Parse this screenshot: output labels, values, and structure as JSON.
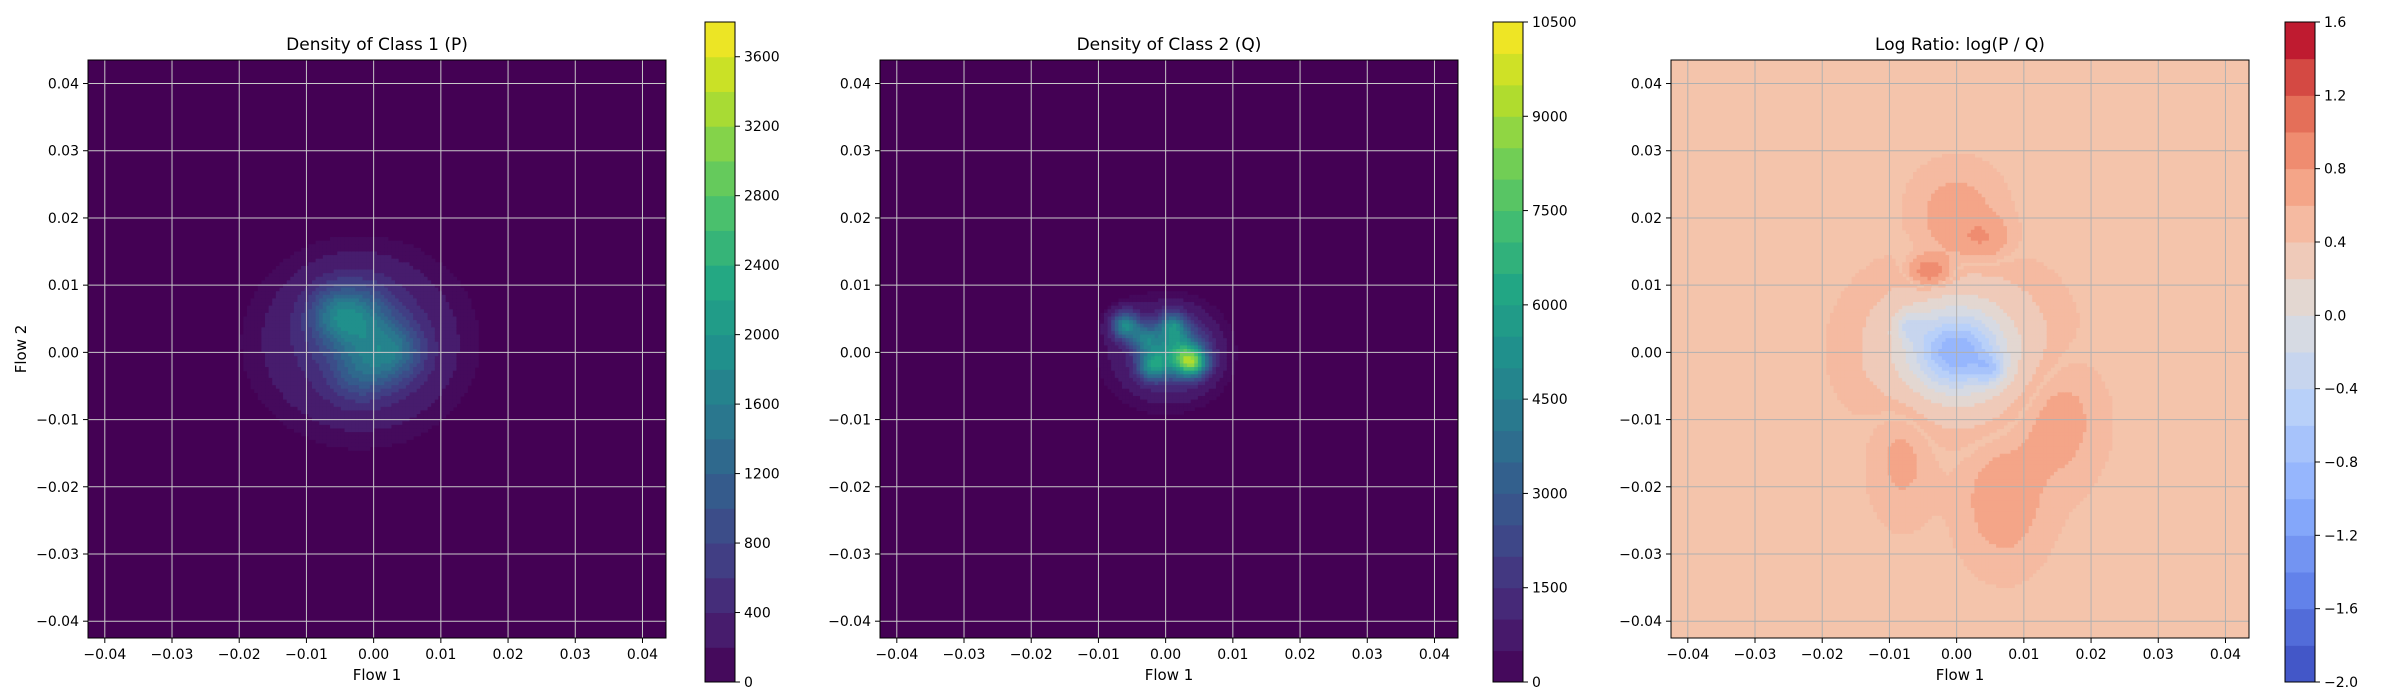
{
  "chart_data": [
    {
      "type": "heatmap",
      "title": "Density of Class 1 (P)",
      "xlabel": "Flow 1",
      "ylabel": "Flow 2",
      "xlim": [
        -0.0425,
        0.0435
      ],
      "ylim": [
        -0.0425,
        0.0435
      ],
      "grid": true,
      "x_ticks": [
        -0.04,
        -0.03,
        -0.02,
        -0.01,
        0.0,
        0.01,
        0.02,
        0.03,
        0.04
      ],
      "y_ticks": [
        -0.04,
        -0.03,
        -0.02,
        -0.01,
        0.0,
        0.01,
        0.02,
        0.03,
        0.04
      ],
      "x_tick_labels": [
        "−0.04",
        "−0.03",
        "−0.02",
        "−0.01",
        "0.00",
        "0.01",
        "0.02",
        "0.03",
        "0.04"
      ],
      "y_tick_labels": [
        "−0.04",
        "−0.03",
        "−0.02",
        "−0.01",
        "0.00",
        "0.01",
        "0.02",
        "0.03",
        "0.04"
      ],
      "colormap": "viridis",
      "background_color": "#440154",
      "colorbar": {
        "min": 0,
        "max": 3800,
        "levels": 19,
        "ticks": [
          0,
          400,
          800,
          1200,
          1600,
          2000,
          2400,
          2800,
          3200,
          3600
        ],
        "tick_labels": [
          "0",
          "400",
          "800",
          "1200",
          "1600",
          "2000",
          "2400",
          "2800",
          "3200",
          "3600"
        ]
      },
      "blobs": [
        {
          "x": -0.002,
          "y": 0.0015,
          "sx": 0.0095,
          "sy": 0.0085,
          "amp": 0.17
        },
        {
          "x": -0.003,
          "y": 0.005,
          "sx": 0.0038,
          "sy": 0.0035,
          "amp": 0.3
        },
        {
          "x": 0.003,
          "y": 0.0,
          "sx": 0.003,
          "sy": 0.003,
          "amp": 0.24
        },
        {
          "x": -0.002,
          "y": -0.003,
          "sx": 0.003,
          "sy": 0.003,
          "amp": 0.16
        },
        {
          "x": -0.006,
          "y": 0.006,
          "sx": 0.0025,
          "sy": 0.0025,
          "amp": 0.1
        }
      ]
    },
    {
      "type": "heatmap",
      "title": "Density of Class 2 (Q)",
      "xlabel": "Flow 1",
      "ylabel": "",
      "xlim": [
        -0.0425,
        0.0435
      ],
      "ylim": [
        -0.0425,
        0.0435
      ],
      "grid": true,
      "x_ticks": [
        -0.04,
        -0.03,
        -0.02,
        -0.01,
        0.0,
        0.01,
        0.02,
        0.03,
        0.04
      ],
      "y_ticks": [
        -0.04,
        -0.03,
        -0.02,
        -0.01,
        0.0,
        0.01,
        0.02,
        0.03,
        0.04
      ],
      "x_tick_labels": [
        "−0.04",
        "−0.03",
        "−0.02",
        "−0.01",
        "0.00",
        "0.01",
        "0.02",
        "0.03",
        "0.04"
      ],
      "y_tick_labels": [
        "−0.04",
        "−0.03",
        "−0.02",
        "−0.01",
        "0.00",
        "0.01",
        "0.02",
        "0.03",
        "0.04"
      ],
      "colormap": "viridis",
      "background_color": "#440154",
      "colorbar": {
        "min": 0,
        "max": 10500,
        "levels": 21,
        "ticks": [
          0,
          1500,
          3000,
          4500,
          6000,
          7500,
          9000,
          10500
        ],
        "tick_labels": [
          "0",
          "1500",
          "3000",
          "4500",
          "6000",
          "7500",
          "9000",
          "10500"
        ]
      },
      "blobs": [
        {
          "x": 0.0,
          "y": 0.0,
          "sx": 0.0062,
          "sy": 0.0055,
          "amp": 0.12
        },
        {
          "x": 0.002,
          "y": 0.0,
          "sx": 0.0025,
          "sy": 0.0025,
          "amp": 0.45
        },
        {
          "x": 0.004,
          "y": -0.0015,
          "sx": 0.0016,
          "sy": 0.0014,
          "amp": 0.5
        },
        {
          "x": -0.006,
          "y": 0.004,
          "sx": 0.0014,
          "sy": 0.0014,
          "amp": 0.42
        },
        {
          "x": -0.002,
          "y": -0.002,
          "sx": 0.0015,
          "sy": 0.0015,
          "amp": 0.38
        },
        {
          "x": 0.001,
          "y": 0.004,
          "sx": 0.0014,
          "sy": 0.0014,
          "amp": 0.32
        },
        {
          "x": -0.003,
          "y": 0.002,
          "sx": 0.0015,
          "sy": 0.0015,
          "amp": 0.3
        }
      ]
    },
    {
      "type": "heatmap",
      "title": "Log Ratio: log(P / Q)",
      "xlabel": "Flow 1",
      "ylabel": "",
      "xlim": [
        -0.0425,
        0.0435
      ],
      "ylim": [
        -0.0425,
        0.0435
      ],
      "grid": true,
      "x_ticks": [
        -0.04,
        -0.03,
        -0.02,
        -0.01,
        0.0,
        0.01,
        0.02,
        0.03,
        0.04
      ],
      "y_ticks": [
        -0.04,
        -0.03,
        -0.02,
        -0.01,
        0.0,
        0.01,
        0.02,
        0.03,
        0.04
      ],
      "x_tick_labels": [
        "−0.04",
        "−0.03",
        "−0.02",
        "−0.01",
        "0.00",
        "0.01",
        "0.02",
        "0.03",
        "0.04"
      ],
      "y_tick_labels": [
        "−0.04",
        "−0.03",
        "−0.02",
        "−0.01",
        "0.00",
        "0.01",
        "0.02",
        "0.03",
        "0.04"
      ],
      "colormap": "coolwarm",
      "background_color": "#f4c4ab",
      "colorbar": {
        "min": -2.0,
        "max": 1.6,
        "levels": 18,
        "ticks": [
          -2.0,
          -1.6,
          -1.2,
          -0.8,
          -0.4,
          0.0,
          0.4,
          0.8,
          1.2,
          1.6
        ],
        "tick_labels": [
          "−2.0",
          "−1.6",
          "−1.2",
          "−0.8",
          "−0.4",
          "0.0",
          "0.4",
          "0.8",
          "1.2",
          "1.6"
        ]
      },
      "blobs": [
        {
          "x": 0.0,
          "y": 0.0005,
          "sx": 0.0075,
          "sy": 0.0065,
          "amp": -0.6
        },
        {
          "x": 0.0,
          "y": 0.0,
          "sx": 0.004,
          "sy": 0.0035,
          "amp": -0.9
        },
        {
          "x": 0.005,
          "y": -0.0025,
          "sx": 0.0015,
          "sy": 0.0015,
          "amp": -0.5
        },
        {
          "x": -0.007,
          "y": 0.004,
          "sx": 0.0015,
          "sy": 0.0015,
          "amp": -0.4
        },
        {
          "x": -0.004,
          "y": 0.012,
          "sx": 0.002,
          "sy": 0.0015,
          "amp": 0.55
        },
        {
          "x": 0.004,
          "y": 0.017,
          "sx": 0.0025,
          "sy": 0.002,
          "amp": 0.25
        },
        {
          "x": 0.0,
          "y": 0.02,
          "sx": 0.004,
          "sy": 0.0045,
          "amp": 0.2
        },
        {
          "x": 0.015,
          "y": -0.01,
          "sx": 0.004,
          "sy": 0.006,
          "amp": 0.18
        },
        {
          "x": 0.007,
          "y": -0.022,
          "sx": 0.004,
          "sy": 0.006,
          "amp": 0.2
        },
        {
          "x": -0.008,
          "y": -0.015,
          "sx": 0.003,
          "sy": 0.006,
          "amp": 0.15
        }
      ]
    }
  ]
}
